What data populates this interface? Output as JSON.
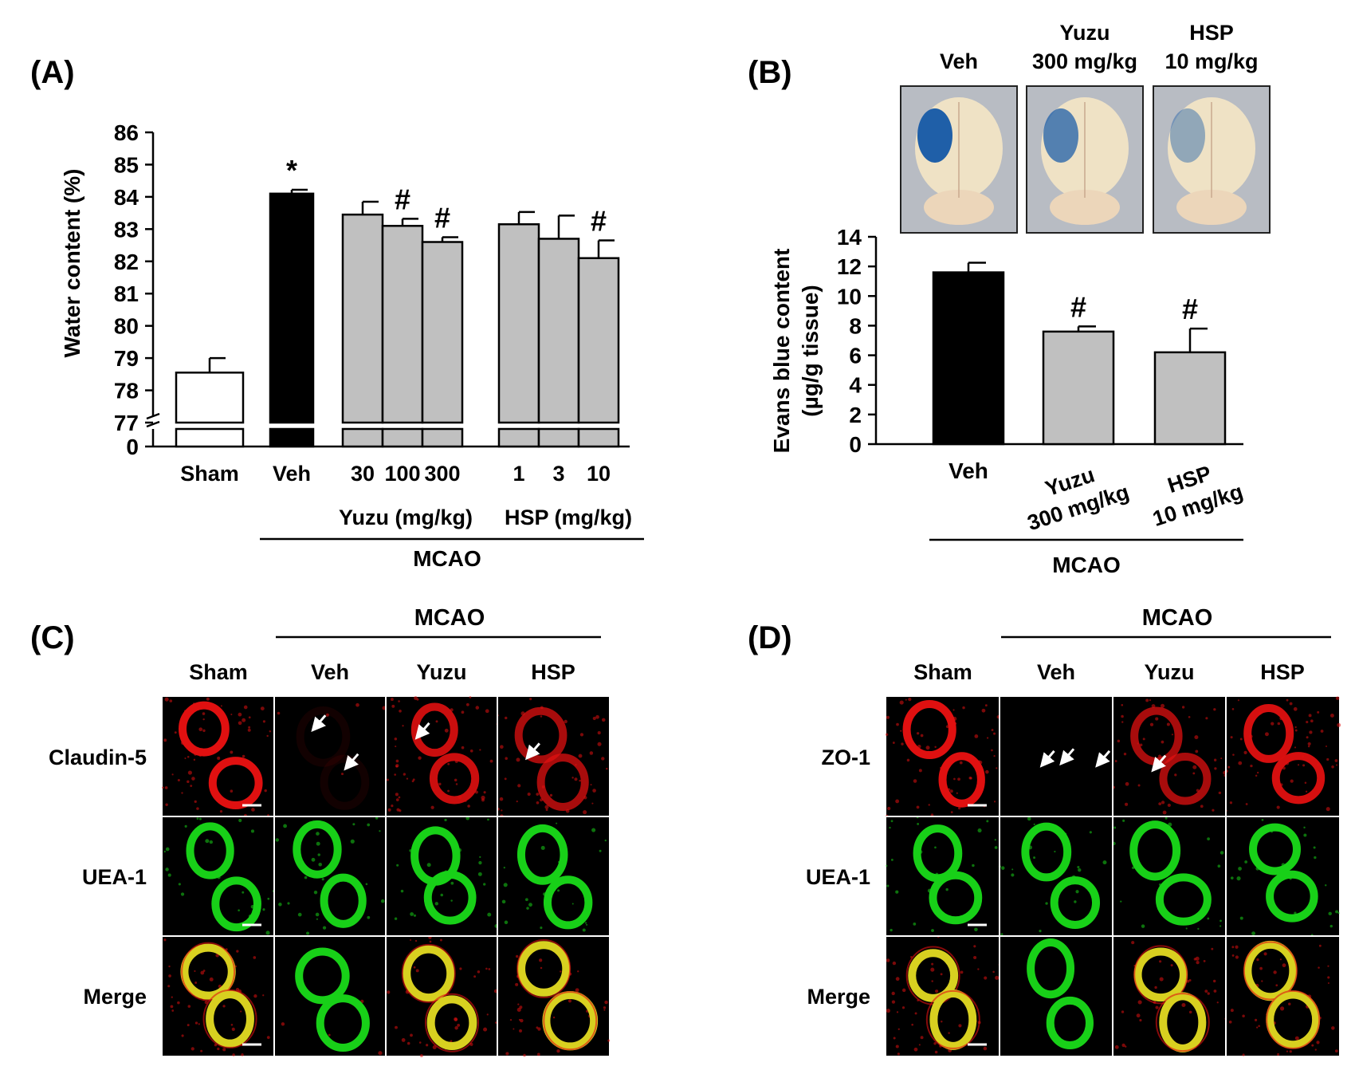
{
  "panels": {
    "a": {
      "label": "(A)"
    },
    "b": {
      "label": "(B)"
    },
    "c": {
      "label": "(C)"
    },
    "d": {
      "label": "(D)"
    }
  },
  "group_label": "MCAO",
  "brain_photos": [
    {
      "title_lines": [
        "Veh"
      ],
      "dye_level": 1.0
    },
    {
      "title_lines": [
        "Yuzu",
        "300 mg/kg"
      ],
      "dye_level": 0.75
    },
    {
      "title_lines": [
        "HSP",
        "10 mg/kg"
      ],
      "dye_level": 0.45
    }
  ],
  "colors": {
    "vehicle_bar": "#000000",
    "treated_bar": "#c0c0c0",
    "sham_bar": "#ffffff",
    "red_channel": "#e01010",
    "green_channel": "#18d018",
    "merge_overlap": "#d8d020",
    "brain_tissue": "#efe2c5",
    "evans_blue": "#1f5fa8"
  },
  "chart_data": [
    {
      "type": "bar",
      "panel": "(A)",
      "ylabel": "Water content (%)",
      "xlabel": "",
      "categories": [
        "Sham",
        "Veh",
        "30",
        "100",
        "300",
        "1",
        "3",
        "10"
      ],
      "values": [
        78.55,
        84.1,
        83.45,
        83.1,
        82.6,
        83.15,
        82.7,
        82.1
      ],
      "errors": [
        0.45,
        0.12,
        0.4,
        0.22,
        0.15,
        0.38,
        0.72,
        0.55
      ],
      "bar_colors": [
        "white",
        "black",
        "gray",
        "gray",
        "gray",
        "gray",
        "gray",
        "gray"
      ],
      "significance": [
        "",
        "*",
        "",
        "#",
        "#",
        "",
        "",
        "#"
      ],
      "yticks": [
        "86",
        "85",
        "84",
        "83",
        "82",
        "81",
        "80",
        "79",
        "78",
        "77",
        "0"
      ],
      "ylim": [
        77,
        86
      ],
      "axis_break": "between 0 and 77",
      "group_labels": [
        "Yuzu (mg/kg)",
        "HSP (mg/kg)"
      ],
      "outer_group_label": "MCAO"
    },
    {
      "type": "bar",
      "panel": "(B)",
      "ylabel": "Evans blue content",
      "ylabel_line2": "(µg/g tissue)",
      "xlabel": "",
      "categories": [
        "Veh",
        "Yuzu",
        "HSP"
      ],
      "category_doses": [
        "",
        "300 mg/kg",
        "10 mg/kg"
      ],
      "values": [
        11.6,
        7.6,
        6.2
      ],
      "errors": [
        0.65,
        0.35,
        1.6
      ],
      "bar_colors": [
        "black",
        "gray",
        "gray"
      ],
      "significance": [
        "",
        "#",
        "#"
      ],
      "yticks": [
        "0",
        "2",
        "4",
        "6",
        "8",
        "10",
        "12",
        "14"
      ],
      "ylim": [
        0,
        14
      ],
      "outer_group_label": "MCAO"
    }
  ],
  "micrographs": [
    {
      "panel": "(C)",
      "columns": [
        "Sham",
        "Veh",
        "Yuzu",
        "HSP"
      ],
      "rows": [
        "Claudin-5",
        "UEA-1",
        "Merge"
      ],
      "red_intensity": [
        1.0,
        0.08,
        0.9,
        0.75
      ],
      "arrows_per_column": [
        0,
        2,
        1,
        1
      ]
    },
    {
      "panel": "(D)",
      "columns": [
        "Sham",
        "Veh",
        "Yuzu",
        "HSP"
      ],
      "rows": [
        "ZO-1",
        "UEA-1",
        "Merge"
      ],
      "red_intensity": [
        1.0,
        0.0,
        0.75,
        0.95
      ],
      "arrows_per_column": [
        0,
        3,
        1,
        0
      ]
    }
  ]
}
